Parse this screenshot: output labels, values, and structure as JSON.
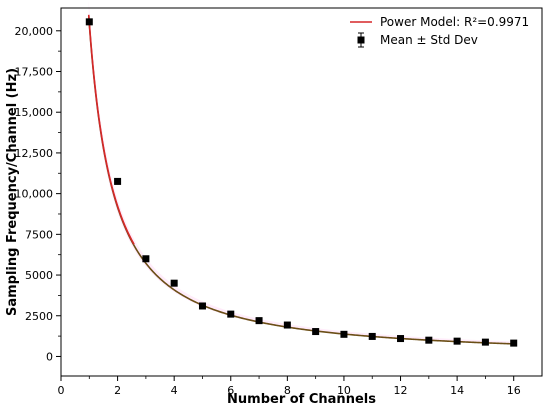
{
  "chart_data": {
    "type": "scatter",
    "title": "",
    "xlabel": "Number of Channels",
    "ylabel": "Sampling Frequency/Channel (Hz)",
    "xlim": [
      0,
      17
    ],
    "ylim": [
      -1200,
      21400
    ],
    "xticks": [
      0,
      2,
      4,
      6,
      8,
      10,
      12,
      14,
      16
    ],
    "xtick_labels": [
      "0",
      "2",
      "4",
      "6",
      "8",
      "10",
      "12",
      "14",
      "16"
    ],
    "yticks": [
      0,
      2500,
      5000,
      7500,
      10000,
      12500,
      15000,
      17500,
      20000
    ],
    "ytick_labels": [
      "0",
      "2500",
      "5000",
      "7500",
      "10,000",
      "12,500",
      "15,000",
      "17,500",
      "20,000"
    ],
    "grid": false,
    "legend_position": "top-right",
    "series": [
      {
        "name": "Mean ± Std Dev",
        "kind": "scatter_errorbar",
        "color": "#000000",
        "x": [
          1,
          2,
          3,
          4,
          5,
          6,
          7,
          8,
          9,
          10,
          11,
          12,
          13,
          14,
          15,
          16
        ],
        "y": [
          20550,
          10750,
          6000,
          4500,
          3100,
          2600,
          2200,
          1930,
          1530,
          1360,
          1230,
          1100,
          1000,
          940,
          880,
          820
        ],
        "yerr": [
          120,
          150,
          140,
          130,
          140,
          130,
          120,
          110,
          110,
          100,
          100,
          90,
          90,
          90,
          90,
          90
        ]
      },
      {
        "name": "Power Model: R²=0.9971",
        "kind": "fit_line",
        "color": "#d62728",
        "shadow_color": "#6b4e16",
        "band_color": "#ffc8f0",
        "model": {
          "form": "a*x^b",
          "a": 20500,
          "b": -1.15
        }
      }
    ]
  }
}
